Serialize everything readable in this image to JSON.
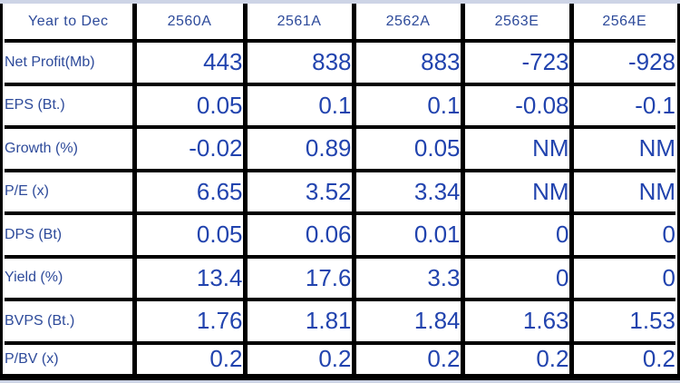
{
  "page": {
    "background_color": "#cdd4e6",
    "table_background": "#ffffff",
    "border_color": "#000000",
    "label_text_color": "#2d4a9a",
    "value_text_color": "#2143ae"
  },
  "table": {
    "header": [
      "Year to Dec",
      "2560A",
      "2561A",
      "2562A",
      "2563E",
      "2564E"
    ],
    "rows": [
      {
        "label": "Net Profit(Mb)",
        "values": [
          "443",
          "838",
          "883",
          "-723",
          "-928"
        ]
      },
      {
        "label": "EPS (Bt.)",
        "values": [
          "0.05",
          "0.1",
          "0.1",
          "-0.08",
          "-0.1"
        ]
      },
      {
        "label": "Growth (%)",
        "values": [
          "-0.02",
          "0.89",
          "0.05",
          "NM",
          "NM"
        ]
      },
      {
        "label": "P/E (x)",
        "values": [
          "6.65",
          "3.52",
          "3.34",
          "NM",
          "NM"
        ]
      },
      {
        "label": "DPS (Bt)",
        "values": [
          "0.05",
          "0.06",
          "0.01",
          "0",
          "0"
        ]
      },
      {
        "label": "Yield (%)",
        "values": [
          "13.4",
          "17.6",
          "3.3",
          "0",
          "0"
        ]
      },
      {
        "label": "BVPS (Bt.)",
        "values": [
          "1.76",
          "1.81",
          "1.84",
          "1.63",
          "1.53"
        ]
      },
      {
        "label": "P/BV (x)",
        "values": [
          "0.2",
          "0.2",
          "0.2",
          "0.2",
          "0.2"
        ]
      }
    ]
  },
  "chart_data": {
    "type": "table",
    "columns": [
      "Year to Dec",
      "2560A",
      "2561A",
      "2562A",
      "2563E",
      "2564E"
    ],
    "rows": [
      [
        "Net Profit(Mb)",
        "443",
        "838",
        "883",
        "-723",
        "-928"
      ],
      [
        "EPS (Bt.)",
        "0.05",
        "0.1",
        "0.1",
        "-0.08",
        "-0.1"
      ],
      [
        "Growth (%)",
        "-0.02",
        "0.89",
        "0.05",
        "NM",
        "NM"
      ],
      [
        "P/E (x)",
        "6.65",
        "3.52",
        "3.34",
        "NM",
        "NM"
      ],
      [
        "DPS (Bt)",
        "0.05",
        "0.06",
        "0.01",
        "0",
        "0"
      ],
      [
        "Yield (%)",
        "13.4",
        "17.6",
        "3.3",
        "0",
        "0"
      ],
      [
        "BVPS (Bt.)",
        "1.76",
        "1.81",
        "1.84",
        "1.63",
        "1.53"
      ],
      [
        "P/BV (x)",
        "0.2",
        "0.2",
        "0.2",
        "0.2",
        "0.2"
      ]
    ]
  }
}
